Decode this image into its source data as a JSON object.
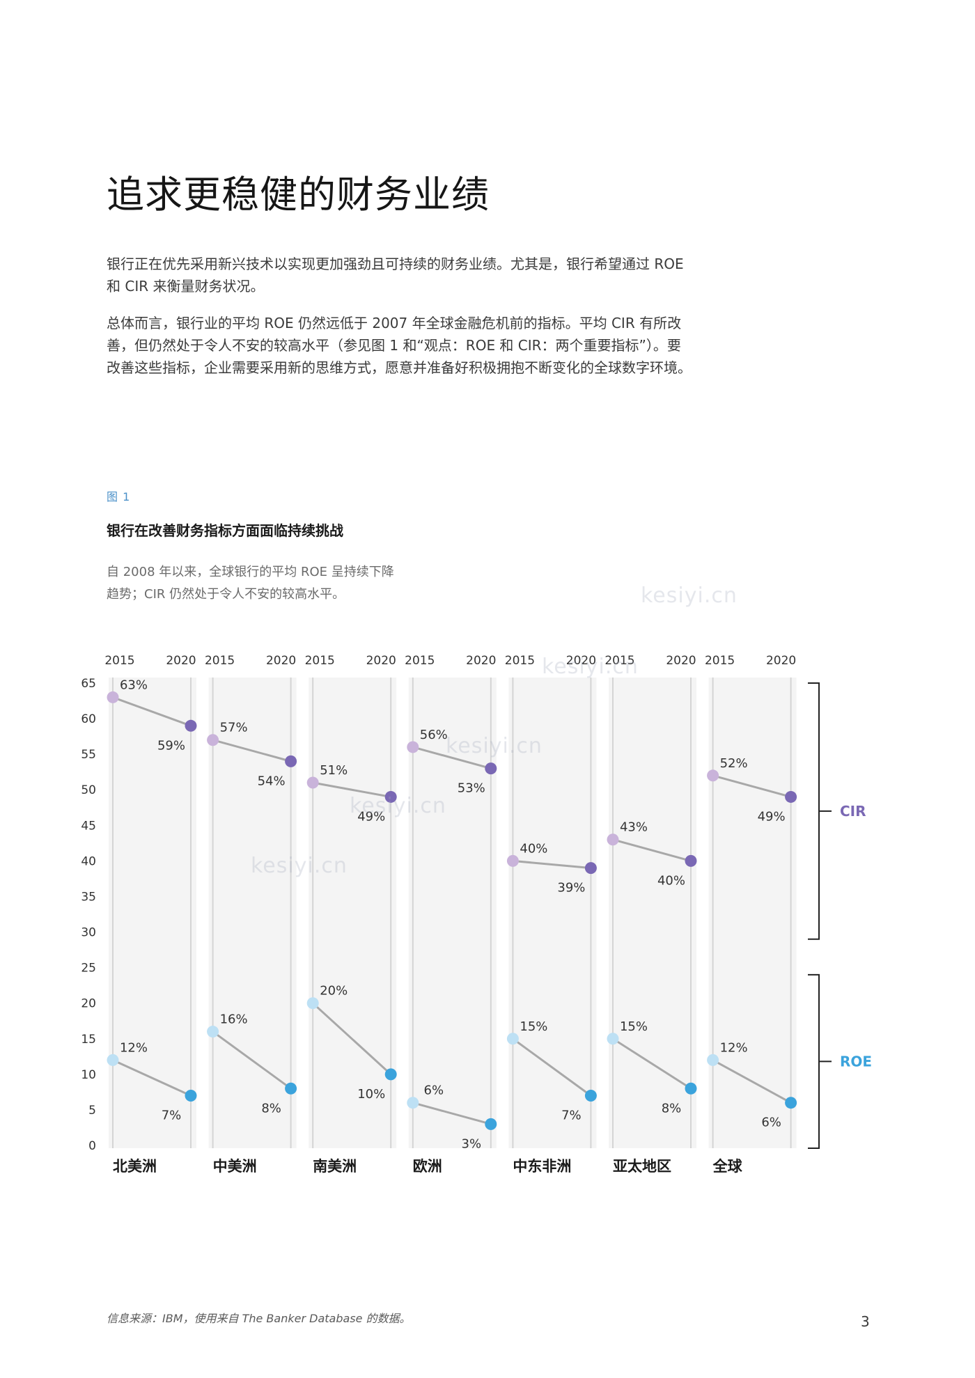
{
  "title": "追求更稳健的财务业绩",
  "paragraphs": [
    "银行正在优先采用新兴技术以实现更加强劲且可持续的财务业绩。尤其是，银行希望通过 ROE 和 CIR 来衡量财务状况。",
    "总体而言，银行业的平均 ROE 仍然远低于 2007 年全球金融危机前的指标。平均 CIR 有所改善，但仍然处于令人不安的较高水平（参见图 1 和“观点：ROE 和 CIR：两个重要指标”）。要改善这些指标，企业需要采用新的思维方式，愿意并准备好积极拥抱不断变化的全球数字环境。"
  ],
  "figure": {
    "label": "图 1",
    "title": "银行在改善财务指标方面面临持续挑战",
    "subtitle": "自 2008 年以来，全球银行的平均 ROE 呈持续下降趋势；CIR 仍然处于令人不安的较高水平。"
  },
  "watermark": "kesiyi.cn",
  "chart_data": {
    "type": "line",
    "categories": [
      "北美洲",
      "中美洲",
      "南美洲",
      "欧洲",
      "中东非洲",
      "亚太地区",
      "全球"
    ],
    "x": [
      "2015",
      "2020"
    ],
    "yticks": [
      "0",
      "5",
      "10",
      "15",
      "20",
      "25",
      "30",
      "35",
      "40",
      "45",
      "50",
      "55",
      "60",
      "65"
    ],
    "ylim": [
      0,
      65
    ],
    "series": [
      {
        "name": "CIR",
        "color_light": "#c9b3da",
        "color_dark": "#7a68b4",
        "values_2015": [
          63,
          57,
          51,
          56,
          40,
          43,
          52
        ],
        "values_2020": [
          59,
          54,
          49,
          53,
          39,
          40,
          49
        ],
        "labels_2015": [
          "63%",
          "57%",
          "51%",
          "56%",
          "40%",
          "43%",
          "52%"
        ],
        "labels_2020": [
          "59%",
          "54%",
          "49%",
          "53%",
          "39%",
          "40%",
          "49%"
        ]
      },
      {
        "name": "ROE",
        "color_light": "#bde0f4",
        "color_dark": "#3ba3dc",
        "values_2015": [
          12,
          16,
          20,
          6,
          15,
          15,
          12
        ],
        "values_2020": [
          7,
          8,
          10,
          3,
          7,
          8,
          6
        ],
        "labels_2015": [
          "12%",
          "16%",
          "20%",
          "6%",
          "15%",
          "15%",
          "12%"
        ],
        "labels_2020": [
          "7%",
          "8%",
          "10%",
          "3%",
          "7%",
          "8%",
          "6%"
        ]
      }
    ],
    "grid": false,
    "legend": "right-brackets",
    "colors": {
      "column_bg": "#f4f4f4",
      "column_line": "#d4d4d4",
      "connector": "#a8a8a8",
      "cir_label": "#7a68b4",
      "roe_label": "#3ba3dc"
    }
  },
  "source": "信息来源：IBM，使用来自 The Banker Database 的数据。",
  "page_number": "3"
}
